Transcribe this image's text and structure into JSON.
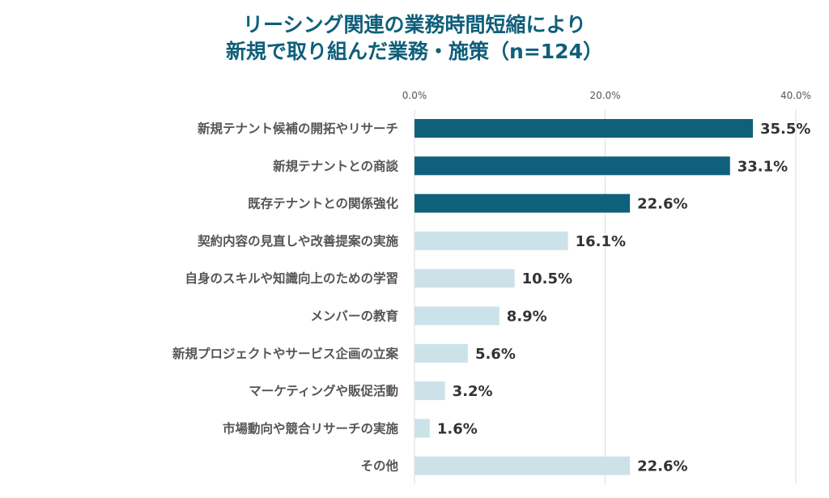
{
  "chart_data": {
    "type": "bar",
    "orientation": "horizontal",
    "title": [
      "リーシング関連の業務時間短縮により",
      "新規で取り組んだ業務・施策（n=124）"
    ],
    "xlabel": "",
    "ylabel": "",
    "xlim": [
      0,
      40
    ],
    "xticks": [
      0,
      20,
      40
    ],
    "xtick_labels": [
      "0.0%",
      "20.0%",
      "40.0%"
    ],
    "grid": true,
    "categories": [
      "新規テナント候補の開拓やリサーチ",
      "新規テナントとの商談",
      "既存テナントとの関係強化",
      "契約内容の見直しや改善提案の実施",
      "自身のスキルや知識向上のための学習",
      "メンバーの教育",
      "新規プロジェクトやサービス企画の立案",
      "マーケティングや販促活動",
      "市場動向や競合リサーチの実施",
      "その他"
    ],
    "values": [
      35.5,
      33.1,
      22.6,
      16.1,
      10.5,
      8.9,
      5.6,
      3.2,
      1.6,
      22.6
    ],
    "value_labels": [
      "35.5%",
      "33.1%",
      "22.6%",
      "16.1%",
      "10.5%",
      "8.9%",
      "5.6%",
      "3.2%",
      "1.6%",
      "22.6%"
    ],
    "highlight": [
      true,
      true,
      true,
      false,
      false,
      false,
      false,
      false,
      false,
      false
    ],
    "colors": {
      "highlight": "#0f617b",
      "normal": "#cbe3e8",
      "title": "#0f5f7a",
      "grid": "#e2e2e2"
    }
  }
}
